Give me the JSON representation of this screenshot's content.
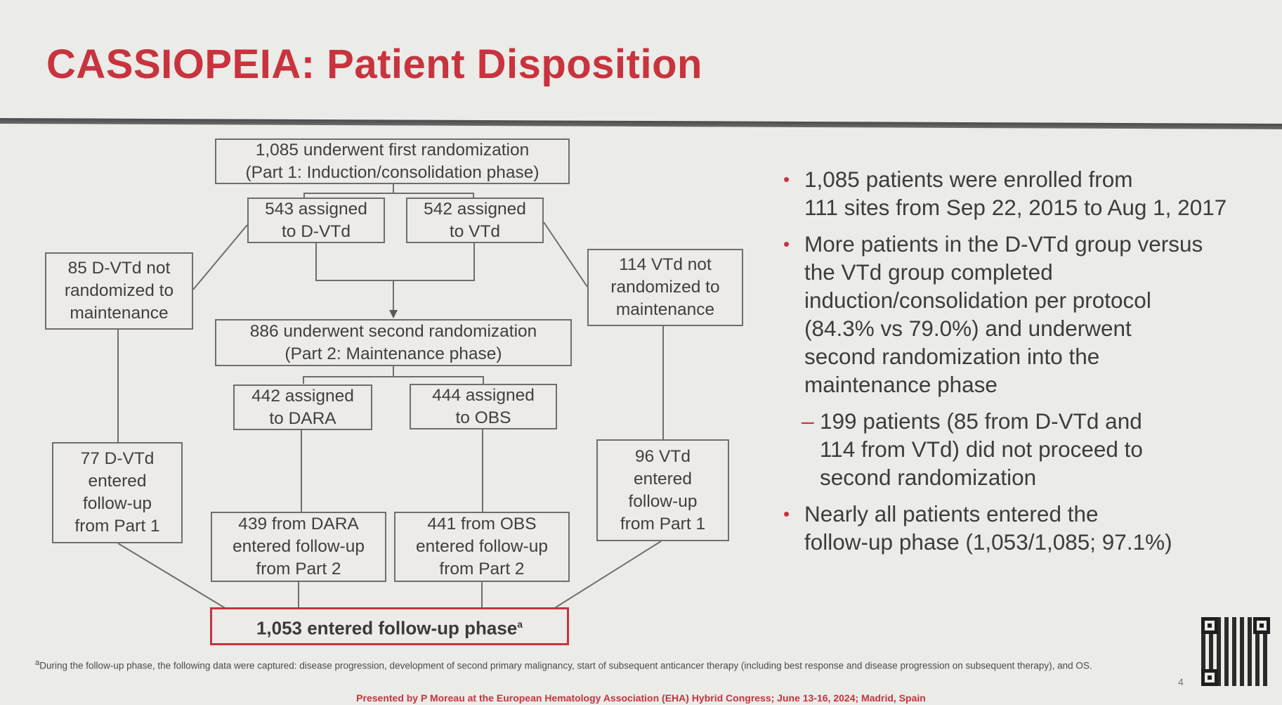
{
  "title": "CASSIOPEIA: Patient Disposition",
  "flowchart": {
    "first_randomization": [
      "1,085 underwent first randomization",
      "(Part 1: Induction/consolidation phase)"
    ],
    "assigned_dvtd": [
      "543 assigned",
      "to D-VTd"
    ],
    "assigned_vtd": [
      "542 assigned",
      "to VTd"
    ],
    "dvtd_not_randomized": [
      "85 D-VTd not",
      "randomized to",
      "maintenance"
    ],
    "vtd_not_randomized": [
      "114 VTd not",
      "randomized to",
      "maintenance"
    ],
    "second_randomization": [
      "886 underwent second randomization",
      "(Part 2: Maintenance phase)"
    ],
    "assigned_dara": [
      "442 assigned",
      "to DARA"
    ],
    "assigned_obs": [
      "444 assigned",
      "to OBS"
    ],
    "dvtd_followup": [
      "77 D-VTd",
      "entered",
      "follow-up",
      "from Part 1"
    ],
    "vtd_followup": [
      "96 VTd",
      "entered",
      "follow-up",
      "from Part 1"
    ],
    "dara_followup": [
      "439 from DARA",
      "entered follow-up",
      "from Part 2"
    ],
    "obs_followup": [
      "441 from OBS",
      "entered follow-up",
      "from Part 2"
    ],
    "final": "1,053 entered follow-up phase",
    "final_sup": "a"
  },
  "bullets": {
    "b1": [
      "1,085 patients were enrolled from",
      "111 sites from Sep 22, 2015 to Aug 1, 2017"
    ],
    "b2": [
      "More patients in the D-VTd group versus",
      "the VTd group completed",
      "induction/consolidation per protocol",
      "(84.3% vs 79.0%) and underwent",
      "second randomization into the",
      "maintenance phase"
    ],
    "sub": [
      "199 patients (85 from D-VTd and",
      "114 from VTd) did not proceed to",
      "second randomization"
    ],
    "b3": [
      "Nearly all patients entered the",
      "follow-up phase (1,053/1,085; 97.1%)"
    ],
    "bullet_glyph": "•",
    "dash_glyph": "–"
  },
  "footnote": {
    "sup": "a",
    "text": "During the follow-up phase, the following data were captured: disease progression, development of second primary malignancy, start of subsequent anticancer therapy (including best response and disease progression on subsequent therapy), and OS."
  },
  "presented_by": "Presented by P Moreau at the European Hematology Association (EHA) Hybrid Congress; June 13-16, 2024; Madrid, Spain",
  "page_number": "4",
  "colors": {
    "accent": "#c8333d",
    "text": "#3a3a3a",
    "background": "#ebebe8",
    "box_border": "#6e6e6e"
  },
  "icons": {
    "qr": "qr-code-icon"
  }
}
